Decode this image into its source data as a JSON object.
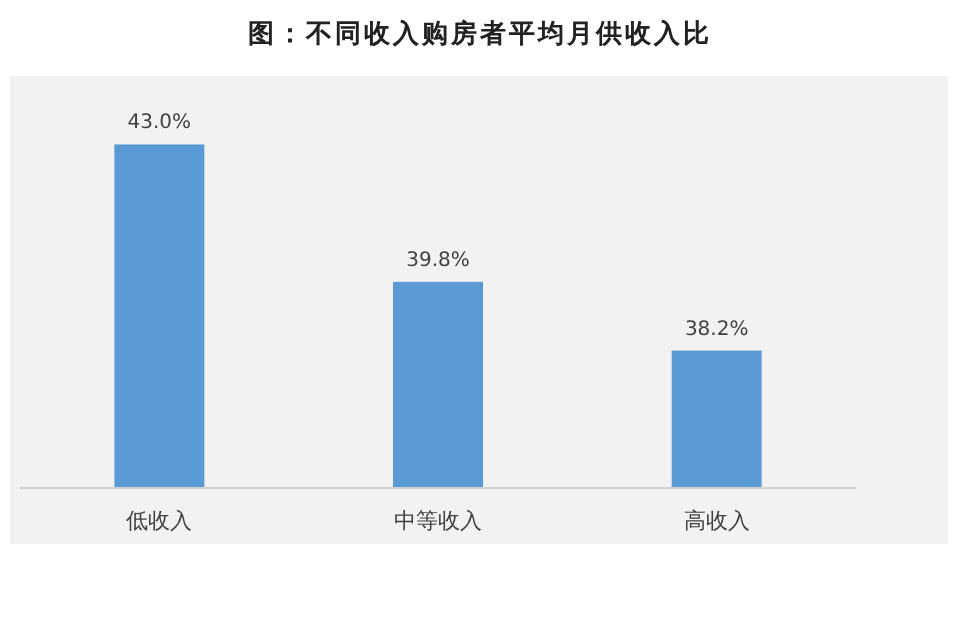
{
  "chart_data": {
    "type": "bar",
    "title": "图：不同收入购房者平均月供收入比",
    "categories": [
      "低收入",
      "中等收入",
      "高收入"
    ],
    "values": [
      43.0,
      39.8,
      38.2
    ],
    "value_labels": [
      "43.0%",
      "39.8%",
      "38.2%"
    ],
    "color": "#5b9bd5",
    "ylim": [
      35,
      44.5
    ]
  }
}
